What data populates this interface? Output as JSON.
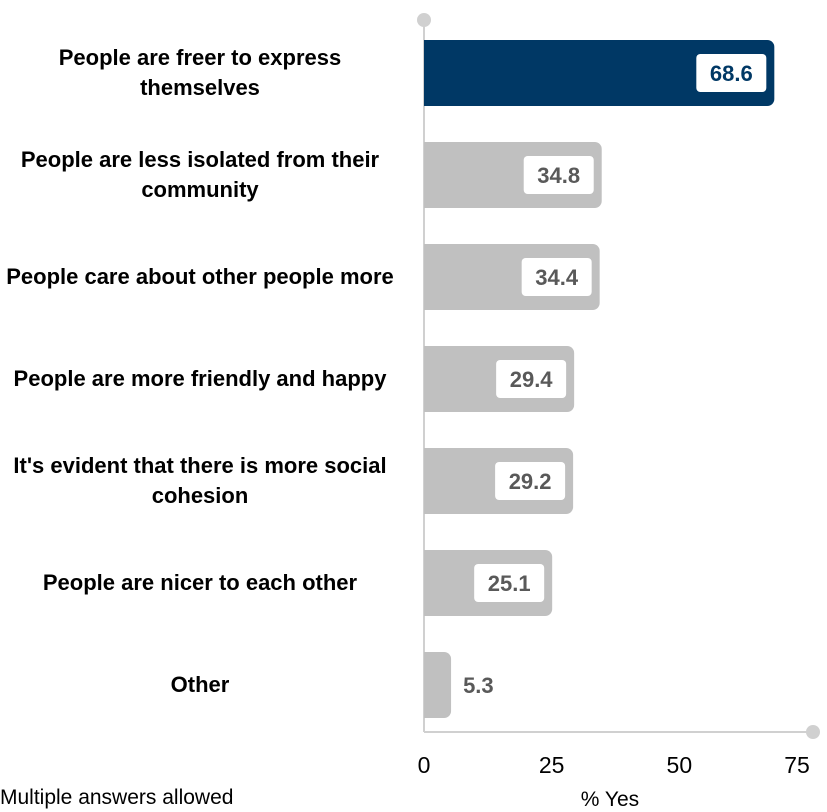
{
  "chart_data": {
    "type": "bar",
    "orientation": "horizontal",
    "categories": [
      "People are freer to express themselves",
      "People are less isolated from their community",
      "People care about other people more",
      "People are more friendly and happy",
      "It's evident that there is more social cohesion",
      "People are nicer to each other",
      "Other"
    ],
    "values": [
      68.6,
      34.8,
      34.4,
      29.4,
      29.2,
      25.1,
      5.3
    ],
    "data_labels": [
      "68.6",
      "34.8",
      "34.4",
      "29.4",
      "29.2",
      "25.1",
      "5.3"
    ],
    "xlabel": "% Yes",
    "ylabel": "",
    "xlim": [
      0,
      75
    ],
    "ticks": [
      "0",
      "25",
      "50",
      "75"
    ],
    "highlighted_index": 0,
    "grid": false,
    "colors": {
      "highlight": "#003865",
      "bar": "#C0C0C0",
      "axis": "#D0D0D0",
      "label_highlight": "#003865",
      "label_gray": "#595959"
    }
  },
  "footnote": "Multiple answers allowed"
}
